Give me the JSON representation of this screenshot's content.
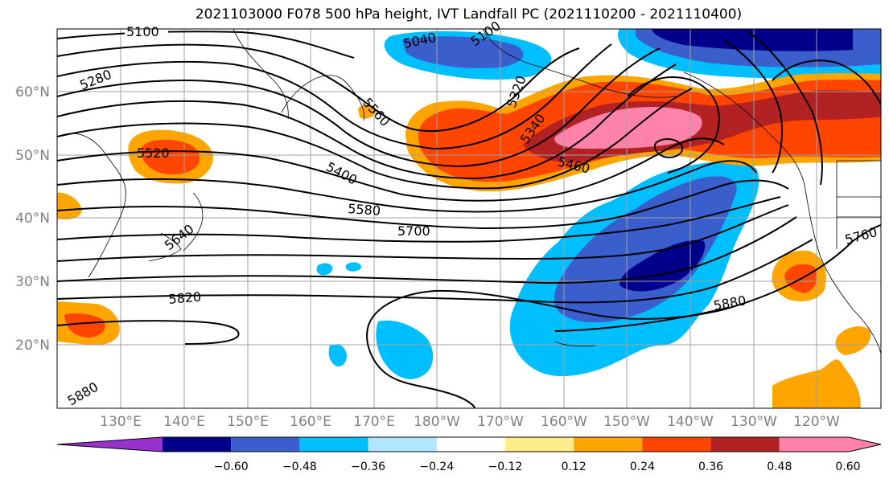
{
  "title": "2021103000 F078 500 hPa height, IVT Landfall PC (2021110200 - 2021110400)",
  "lon_labels": [
    "130°E",
    "140°E",
    "150°E",
    "160°E",
    "170°E",
    "180°W",
    "170°W",
    "160°W",
    "150°W",
    "140°W",
    "130°W",
    "120°W"
  ],
  "lat_labels": [
    "60°N",
    "50°N",
    "40°N",
    "30°N",
    "20°N"
  ],
  "contour_labels": [
    "5100",
    "5040",
    "5100",
    "5280",
    "5560",
    "5320",
    "5340",
    "5520",
    "5400",
    "5460",
    "5580",
    "5640",
    "5700",
    "5760",
    "5820",
    "5880",
    "5880"
  ],
  "colorbar": {
    "colors": [
      "#9932CC",
      "#00008B",
      "#3A5FCD",
      "#00BFFF",
      "#B2E5FF",
      "#FFFFFF",
      "#FFED8A",
      "#FFA500",
      "#FF4500",
      "#B22222",
      "#FF82AB"
    ],
    "tick_labels": [
      "−0.60",
      "−0.48",
      "−0.36",
      "−0.24",
      "−0.12",
      "0.12",
      "0.24",
      "0.36",
      "0.48",
      "0.60"
    ]
  }
}
